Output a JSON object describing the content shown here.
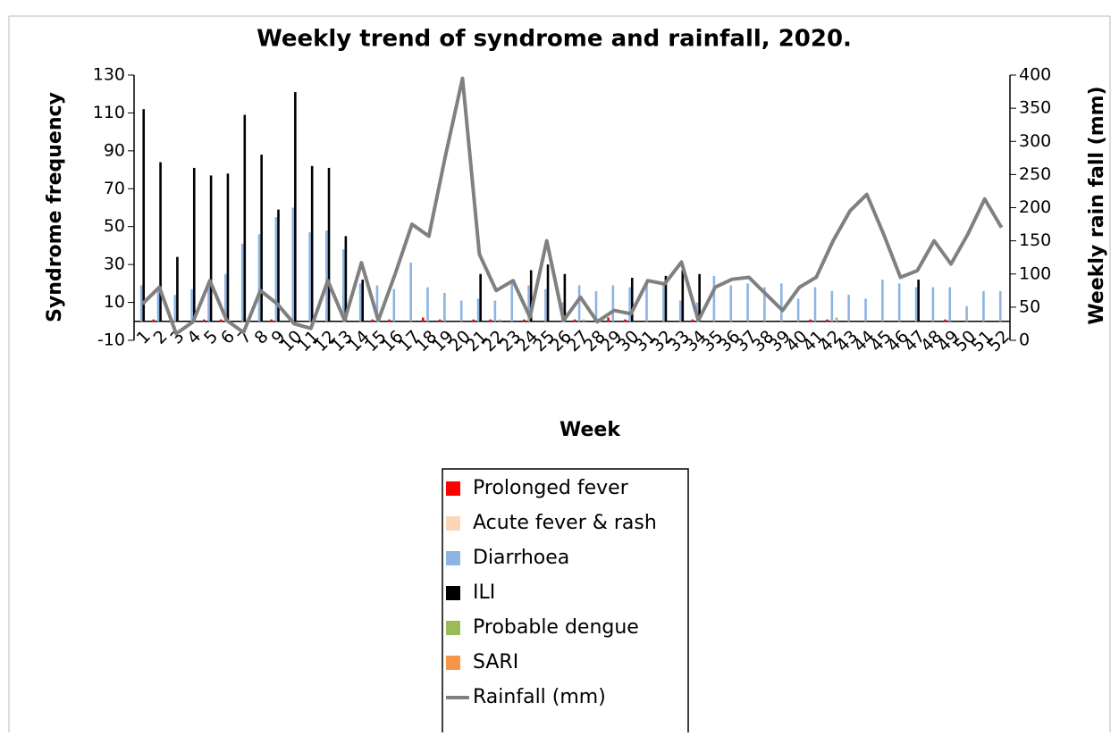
{
  "chart_data": {
    "type": "bar",
    "title": "Weekly trend of syndrome and rainfall, 2020.",
    "x_label": "Week",
    "y_label": "Syndrome frequency",
    "y2_label": "Weekly rain fall (mm)",
    "categories": [
      "1",
      "2",
      "3",
      "4",
      "5",
      "6",
      "7",
      "8",
      "9",
      "10",
      "11",
      "12",
      "13",
      "14",
      "15",
      "16",
      "17",
      "18",
      "19",
      "20",
      "21",
      "22",
      "23",
      "24",
      "25",
      "26",
      "27",
      "28",
      "29",
      "30",
      "31",
      "32",
      "33",
      "34",
      "35",
      "36",
      "37",
      "38",
      "39",
      "40",
      "41",
      "42",
      "43",
      "44",
      "45",
      "46",
      "47",
      "48",
      "49",
      "50",
      "51",
      "52"
    ],
    "ylim": [
      -10,
      130
    ],
    "yticks": [
      -10,
      10,
      30,
      50,
      70,
      90,
      110,
      130
    ],
    "y2lim": [
      0,
      400
    ],
    "y2ticks": [
      0,
      50,
      100,
      150,
      200,
      250,
      300,
      350,
      400
    ],
    "legend": "bottom",
    "series": [
      {
        "name": "Prolonged fever",
        "color": "#ff0000",
        "values": [
          0,
          1,
          0,
          0,
          1,
          1,
          0,
          0,
          1,
          0,
          0,
          0,
          0,
          0,
          1,
          1,
          0,
          2,
          1,
          0,
          1,
          1,
          0,
          1,
          0,
          0,
          1,
          0,
          2,
          1,
          0,
          0,
          0,
          1,
          0,
          0,
          0,
          0,
          0,
          0,
          1,
          1,
          0,
          0,
          0,
          0,
          0,
          0,
          1,
          0,
          0,
          0
        ]
      },
      {
        "name": "Acute fever & rash",
        "color": "#fcd5b5",
        "values": [
          0,
          0,
          0,
          0,
          0,
          0,
          0,
          0,
          0,
          0,
          0,
          0,
          0,
          0,
          0,
          0,
          0,
          0,
          0,
          0,
          0,
          0,
          0,
          0,
          0,
          0,
          0,
          0,
          0,
          0,
          0,
          0,
          0,
          0,
          0,
          0,
          0,
          0,
          0,
          0,
          0,
          0,
          0,
          0,
          0,
          0,
          0,
          0,
          0,
          0,
          0,
          0
        ]
      },
      {
        "name": "Diarrhoea",
        "color": "#8db4e2",
        "values": [
          19,
          17,
          14,
          17,
          20,
          25,
          41,
          46,
          55,
          60,
          47,
          48,
          38,
          20,
          19,
          17,
          31,
          18,
          15,
          11,
          12,
          11,
          20,
          19,
          17,
          10,
          19,
          16,
          19,
          18,
          20,
          19,
          11,
          10,
          24,
          19,
          20,
          18,
          20,
          12,
          18,
          16,
          14,
          12,
          22,
          20,
          18,
          18,
          18,
          8,
          16,
          16
        ]
      },
      {
        "name": "ILI",
        "color": "#000000",
        "values": [
          112,
          84,
          34,
          81,
          77,
          78,
          109,
          88,
          59,
          121,
          82,
          81,
          45,
          22,
          0,
          0,
          0,
          0,
          0,
          0,
          25,
          0,
          0,
          27,
          30,
          25,
          0,
          0,
          0,
          23,
          0,
          24,
          27,
          25,
          0,
          0,
          0,
          0,
          0,
          0,
          0,
          0,
          0,
          0,
          0,
          0,
          22,
          0,
          0,
          0,
          0,
          0
        ]
      },
      {
        "name": "Probable dengue",
        "color": "#9bbb59",
        "values": [
          0,
          0,
          0,
          0,
          0,
          0,
          0,
          0,
          0,
          0,
          0,
          0,
          0,
          0,
          0,
          0,
          0,
          0,
          0,
          0,
          0,
          1,
          0,
          0,
          0,
          0,
          1,
          0,
          0,
          0,
          0,
          0,
          0,
          0,
          0,
          0,
          0,
          0,
          0,
          0,
          0,
          2,
          0,
          0,
          0,
          0,
          0,
          0,
          0,
          0,
          0,
          0
        ]
      },
      {
        "name": "SARI",
        "color": "#f79646",
        "values": [
          0,
          0,
          0,
          0,
          0,
          0,
          0,
          0,
          0,
          0,
          0,
          0,
          0,
          0,
          0,
          0,
          0,
          0,
          0,
          0,
          0,
          0,
          0,
          0,
          0,
          0,
          0,
          0,
          0,
          0,
          0,
          0,
          0,
          0,
          0,
          0,
          0,
          0,
          0,
          0,
          0,
          0,
          0,
          0,
          0,
          0,
          0,
          0,
          0,
          0,
          0,
          0
        ]
      },
      {
        "name": "Rainfall (mm)",
        "color": "#808080",
        "type": "line",
        "axis": "y2",
        "values": [
          55,
          80,
          10,
          28,
          90,
          30,
          12,
          75,
          55,
          25,
          18,
          90,
          30,
          117,
          30,
          100,
          175,
          157,
          280,
          395,
          130,
          75,
          90,
          35,
          150,
          30,
          65,
          28,
          45,
          40,
          90,
          85,
          118,
          30,
          80,
          92,
          95,
          70,
          45,
          80,
          95,
          150,
          195,
          220,
          160,
          95,
          105,
          150,
          115,
          160,
          213,
          170
        ]
      }
    ]
  }
}
